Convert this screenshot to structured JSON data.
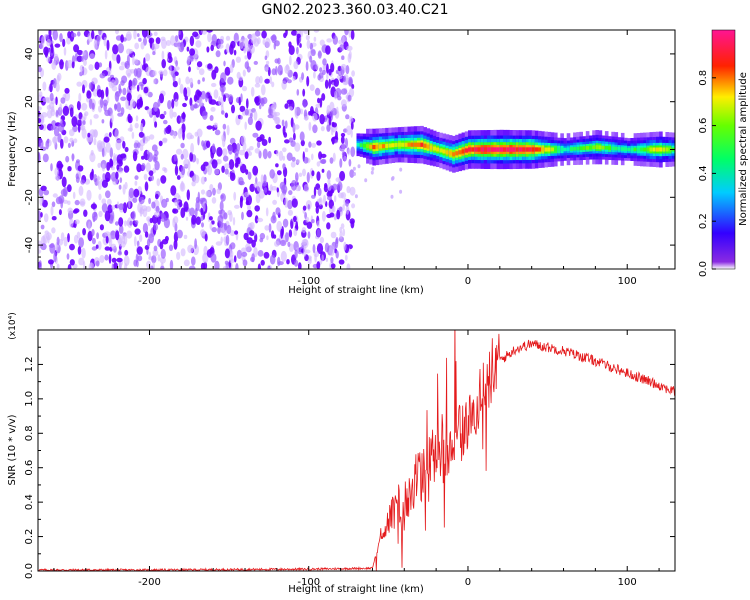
{
  "page": {
    "title": "GN02.2023.360.03.40.C21"
  },
  "colors": {
    "noise_purple": "#7a1cff",
    "snr_line": "#e41a1c",
    "axis": "#000000"
  },
  "chart_data": [
    {
      "type": "heatmap",
      "title": "GN02.2023.360.03.40.C21",
      "xlabel": "Height of straight line (km)",
      "ylabel": "Frequency (Hz)",
      "xlim": [
        -270,
        130
      ],
      "ylim": [
        -50,
        50
      ],
      "xticks": [
        -200,
        -100,
        0,
        100
      ],
      "yticks": [
        -40,
        -20,
        0,
        20,
        40
      ],
      "colorbar": {
        "label": "Normalized spectral amplitude",
        "range": [
          0,
          1
        ],
        "ticks": [
          "0.0",
          "0.2",
          "0.4",
          "0.6",
          "0.8"
        ],
        "colormap": "rainbow (violet-blue-cyan-green-yellow-red-pink)"
      },
      "noise_region": {
        "x_from": -270,
        "x_to": -72,
        "y_from": -50,
        "y_to": 50,
        "amplitude": "low (~0.1)"
      },
      "signal_ridge": {
        "description": "narrow band centred near 0 Hz from about -72 km to the right edge",
        "points": [
          {
            "x": -70,
            "y": 2,
            "amp": 0.5
          },
          {
            "x": -60,
            "y": 1,
            "amp": 0.8
          },
          {
            "x": -45,
            "y": 2,
            "amp": 0.7
          },
          {
            "x": -30,
            "y": 2,
            "amp": 0.85
          },
          {
            "x": -20,
            "y": 0,
            "amp": 0.7
          },
          {
            "x": -10,
            "y": -2,
            "amp": 0.8
          },
          {
            "x": 0,
            "y": 0,
            "amp": 0.9
          },
          {
            "x": 20,
            "y": 0,
            "amp": 0.95
          },
          {
            "x": 40,
            "y": 0,
            "amp": 0.9
          },
          {
            "x": 60,
            "y": 0,
            "amp": 0.5
          },
          {
            "x": 80,
            "y": 1,
            "amp": 0.65
          },
          {
            "x": 100,
            "y": 0,
            "amp": 0.5
          },
          {
            "x": 120,
            "y": 0,
            "amp": 0.75
          },
          {
            "x": 130,
            "y": 0,
            "amp": 0.6
          }
        ]
      }
    },
    {
      "type": "line",
      "xlabel": "Height of straight line (km)",
      "ylabel": "SNR (10 * v/v)",
      "y_scale_note": "(x10⁴)",
      "xlim": [
        -270,
        130
      ],
      "ylim": [
        0.0,
        1.4
      ],
      "xticks": [
        -200,
        -100,
        0,
        100
      ],
      "yticks": [
        "0.0",
        "0.2",
        "0.4",
        "0.6",
        "0.8",
        "1.0",
        "1.2"
      ],
      "series": [
        {
          "values_unit": "x10^4",
          "x": [
            -270,
            -200,
            -100,
            -60,
            -55,
            -50,
            -45,
            -40,
            -35,
            -30,
            -25,
            -20,
            -10,
            0,
            10,
            20,
            30,
            40,
            60,
            80,
            100,
            120,
            130
          ],
          "y": [
            0.0,
            0.0,
            0.005,
            0.01,
            0.2,
            0.3,
            0.35,
            0.4,
            0.5,
            0.55,
            0.62,
            0.68,
            0.75,
            0.85,
            1.05,
            1.22,
            1.29,
            1.32,
            1.28,
            1.22,
            1.15,
            1.08,
            1.04
          ]
        }
      ]
    }
  ]
}
